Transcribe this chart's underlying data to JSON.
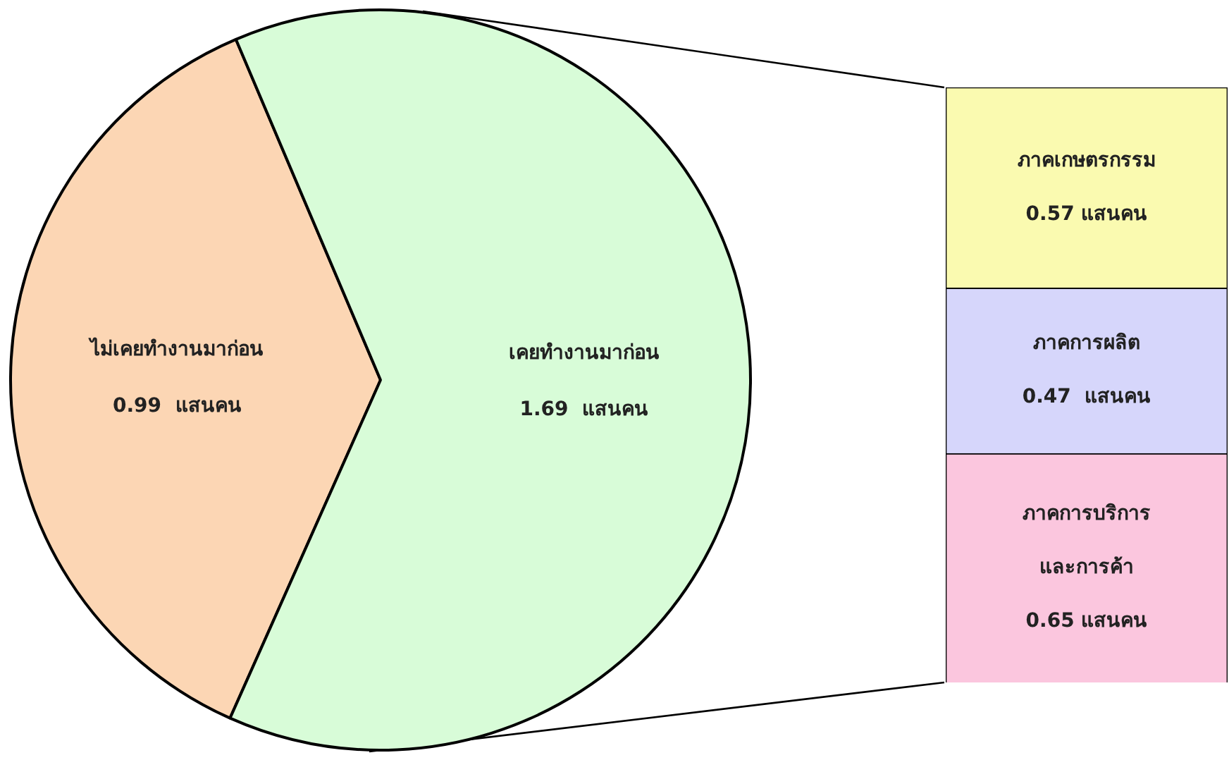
{
  "chart_data": [
    {
      "type": "pie",
      "categories": [
        "ไม่เคยทำงานมาก่อน",
        "เคยทำงานมาก่อน"
      ],
      "values": [
        0.99,
        1.69
      ],
      "value_labels": [
        "0.99  แสนคน",
        "1.69  แสนคน"
      ],
      "colors": [
        "#fcd6b4",
        "#d8fcd8"
      ]
    },
    {
      "type": "bar",
      "stacked": true,
      "categories": [
        null
      ],
      "series": [
        {
          "name": "ภาคการบริการ และการค้า",
          "color": "#fbc6de",
          "values": [
            0.65
          ],
          "value_labels": [
            "0.65 แสนคน"
          ]
        },
        {
          "name": "ภาคการผลิต",
          "color": "#d6d6fb",
          "values": [
            0.47
          ],
          "value_labels": [
            "0.47  แสนคน"
          ]
        },
        {
          "name": "ภาคเกษตรกรรม",
          "color": "#fafab0",
          "values": [
            0.57
          ],
          "value_labels": [
            "0.57 แสนคน"
          ]
        }
      ]
    }
  ]
}
